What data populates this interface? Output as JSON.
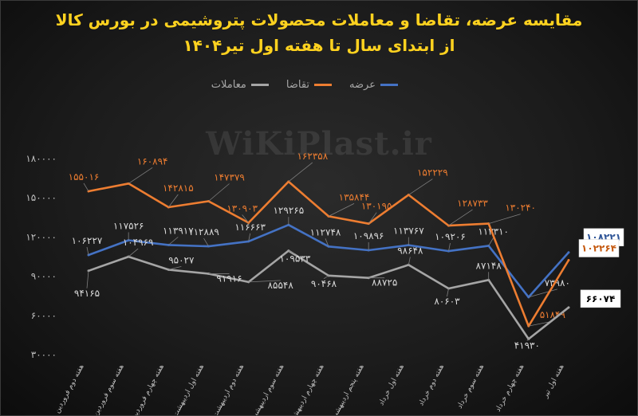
{
  "title_line1": "مقایسه عرضه، تقاضا و معاملات محصولات پتروشیمی در بورس کالا",
  "title_line2": "از ابتدای سال تا هفته اول تیر۱۴۰۴",
  "watermark": "WiKiPlast.ir",
  "legend": [
    {
      "name": "عرضه",
      "color": "#4472c4"
    },
    {
      "name": "تقاضا",
      "color": "#ed7d31"
    },
    {
      "name": "معاملات",
      "color": "#a5a5a5"
    }
  ],
  "chart_data": {
    "type": "line",
    "categories": [
      "هفته دوم فروردین",
      "هفته سوم فروردین",
      "هفته چهارم فروردین",
      "هفته اول اردیبهشت",
      "هفته دوم اردیبهشت",
      "هفته سوم اردیبهشت",
      "هفته چهارم اردیبهشت",
      "هفته پنجم اردیبهشت",
      "هفته اول خرداد",
      "هفته دوم خرداد",
      "هفته سوم خرداد",
      "هفته چهارم خرداد",
      "هفته اول تیر"
    ],
    "series": [
      {
        "name": "عرضه",
        "color": "#4472c4",
        "values": [
          106227,
          117526,
          113917,
          112889,
          116663,
          129265,
          112748,
          109896,
          113767,
          109206,
          113310,
          73980,
          108221
        ],
        "labels": [
          "۱۰۶۲۲۷",
          "۱۱۷۵۲۶",
          "۱۱۳۹۱۷",
          "۱۱۲۸۸۹",
          "۱۱۶۶۶۳",
          "۱۲۹۲۶۵",
          "۱۱۲۷۴۸",
          "۱۰۹۸۹۶",
          "۱۱۳۷۶۷",
          "۱۰۹۲۰۶",
          "۱۱۳۳۱۰",
          "۷۳۹۸۰",
          "۱۰۸۲۲۱"
        ]
      },
      {
        "name": "تقاضا",
        "color": "#ed7d31",
        "values": [
          155016,
          160894,
          142815,
          147379,
          130903,
          162358,
          135844,
          130195,
          152229,
          128733,
          130240,
          51849,
          102264
        ],
        "labels": [
          "۱۵۵۰۱۶",
          "۱۶۰۸۹۴",
          "۱۴۲۸۱۵",
          "۱۴۷۳۷۹",
          "۱۳۰۹۰۳",
          "۱۶۲۳۵۸",
          "۱۳۵۸۴۴",
          "۱۳۰۱۹۵",
          "۱۵۲۲۲۹",
          "۱۲۸۷۳۳",
          "۱۳۰۲۴۰",
          "۵۱۸۴۹",
          "۱۰۲۲۶۴"
        ]
      },
      {
        "name": "معاملات",
        "color": "#a5a5a5",
        "values": [
          94165,
          104969,
          95027,
          91916,
          85548,
          109533,
          90468,
          88725,
          98648,
          80603,
          87148,
          41930,
          66074
        ],
        "labels": [
          "۹۴۱۶۵",
          "۱۰۴۹۶۹",
          "۹۵۰۲۷",
          "۹۱۹۱۶",
          "۸۵۵۴۸",
          "۱۰۹۵۳۳",
          "۹۰۴۶۸",
          "۸۸۷۲۵",
          "۹۸۶۴۸",
          "۸۰۶۰۳",
          "۸۷۱۴۸",
          "۴۱۹۳۰",
          "۶۶۰۷۴"
        ]
      }
    ],
    "yticks": [
      30000,
      60000,
      90000,
      120000,
      150000,
      180000
    ],
    "ytick_labels": [
      "۳۰۰۰۰",
      "۶۰۰۰۰",
      "۹۰۰۰۰",
      "۱۲۰۰۰۰",
      "۱۵۰۰۰۰",
      "۱۸۰۰۰۰"
    ],
    "ylim": [
      30000,
      180000
    ],
    "grid": false,
    "legend_position": "top"
  }
}
